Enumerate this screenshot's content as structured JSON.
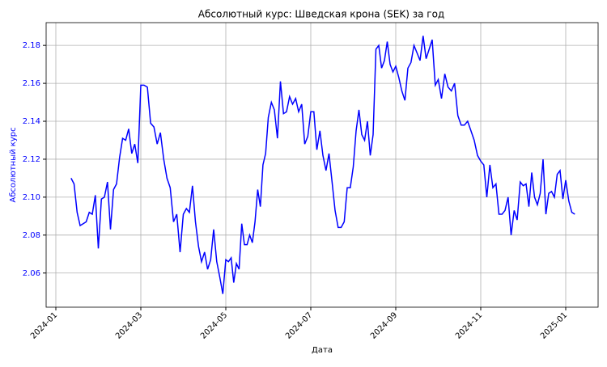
{
  "chart_data": {
    "type": "line",
    "title": "Абсолютный курс: Шведская крона (SEK) за год",
    "xlabel": "Дата",
    "ylabel": "Абсолютный курс",
    "x": [
      "2024-01",
      "2024-01",
      "2024-01",
      "2024-01",
      "2024-01",
      "2024-01",
      "2024-01",
      "2024-01",
      "2024-01",
      "2024-02",
      "2024-02",
      "2024-02",
      "2024-02",
      "2024-02",
      "2024-02",
      "2024-02",
      "2024-02",
      "2024-02",
      "2024-02",
      "2024-02",
      "2024-02",
      "2024-02",
      "2024-02",
      "2024-03",
      "2024-03",
      "2024-03",
      "2024-03",
      "2024-03",
      "2024-03",
      "2024-03",
      "2024-03",
      "2024-03",
      "2024-03",
      "2024-03",
      "2024-03",
      "2024-03",
      "2024-04",
      "2024-04",
      "2024-04",
      "2024-04",
      "2024-04",
      "2024-04",
      "2024-04",
      "2024-04",
      "2024-04",
      "2024-04",
      "2024-04",
      "2024-04",
      "2024-04",
      "2024-04",
      "2024-05",
      "2024-05",
      "2024-05",
      "2024-05",
      "2024-05",
      "2024-05",
      "2024-05",
      "2024-05",
      "2024-05",
      "2024-05",
      "2024-05",
      "2024-05",
      "2024-05",
      "2024-05",
      "2024-05",
      "2024-05",
      "2024-06",
      "2024-06",
      "2024-06",
      "2024-06",
      "2024-06",
      "2024-06",
      "2024-06",
      "2024-06",
      "2024-06",
      "2024-06",
      "2024-06",
      "2024-06",
      "2024-06",
      "2024-06",
      "2024-07",
      "2024-07",
      "2024-07",
      "2024-07",
      "2024-07",
      "2024-07",
      "2024-07",
      "2024-07",
      "2024-07",
      "2024-07",
      "2024-07",
      "2024-07",
      "2024-07",
      "2024-07",
      "2024-08",
      "2024-08",
      "2024-08",
      "2024-08",
      "2024-08",
      "2024-08",
      "2024-08",
      "2024-08",
      "2024-08",
      "2024-08",
      "2024-08",
      "2024-08",
      "2024-08",
      "2024-08",
      "2024-08",
      "2024-09",
      "2024-09",
      "2024-09",
      "2024-09",
      "2024-09",
      "2024-09",
      "2024-09",
      "2024-09",
      "2024-09",
      "2024-09",
      "2024-09",
      "2024-09",
      "2024-09",
      "2024-09",
      "2024-10",
      "2024-10",
      "2024-10",
      "2024-10",
      "2024-10",
      "2024-10",
      "2024-10",
      "2024-10",
      "2024-10",
      "2024-10",
      "2024-10",
      "2024-10",
      "2024-10",
      "2024-11",
      "2024-11",
      "2024-11",
      "2024-11",
      "2024-11",
      "2024-11",
      "2024-11",
      "2024-11",
      "2024-11",
      "2024-11",
      "2024-11",
      "2024-11",
      "2024-11",
      "2024-11",
      "2024-12",
      "2024-12",
      "2024-12",
      "2024-12",
      "2024-12",
      "2024-12",
      "2024-12",
      "2024-12",
      "2024-12",
      "2024-12",
      "2024-12",
      "2024-12",
      "2024-12",
      "2024-12",
      "2024-12",
      "2025-01",
      "2025-01",
      "2025-01",
      "2025-01"
    ],
    "series": [
      {
        "name": "SEK",
        "color": "#0000ff",
        "values": [
          2.11,
          2.107,
          2.092,
          2.085,
          2.086,
          2.087,
          2.092,
          2.091,
          2.101,
          2.073,
          2.099,
          2.1,
          2.108,
          2.083,
          2.104,
          2.107,
          2.121,
          2.131,
          2.13,
          2.136,
          2.123,
          2.128,
          2.118,
          2.159,
          2.159,
          2.158,
          2.139,
          2.137,
          2.128,
          2.134,
          2.12,
          2.11,
          2.105,
          2.087,
          2.091,
          2.071,
          2.091,
          2.094,
          2.092,
          2.106,
          2.087,
          2.074,
          2.066,
          2.071,
          2.062,
          2.067,
          2.083,
          2.066,
          2.058,
          2.049,
          2.067,
          2.066,
          2.068,
          2.055,
          2.065,
          2.062,
          2.086,
          2.075,
          2.075,
          2.08,
          2.076,
          2.087,
          2.104,
          2.095,
          2.117,
          2.123,
          2.142,
          2.15,
          2.146,
          2.131,
          2.161,
          2.144,
          2.145,
          2.153,
          2.149,
          2.152,
          2.145,
          2.149,
          2.128,
          2.132,
          2.145,
          2.145,
          2.125,
          2.135,
          2.122,
          2.114,
          2.123,
          2.108,
          2.093,
          2.084,
          2.084,
          2.087,
          2.105,
          2.105,
          2.116,
          2.135,
          2.146,
          2.133,
          2.13,
          2.14,
          2.122,
          2.133,
          2.178,
          2.18,
          2.168,
          2.172,
          2.182,
          2.17,
          2.166,
          2.169,
          2.163,
          2.156,
          2.151,
          2.168,
          2.171,
          2.18,
          2.176,
          2.172,
          2.185,
          2.173,
          2.178,
          2.183,
          2.159,
          2.162,
          2.152,
          2.165,
          2.158,
          2.156,
          2.16,
          2.143,
          2.138,
          2.138,
          2.14,
          2.135,
          2.13,
          2.122,
          2.119,
          2.117,
          2.1,
          2.117,
          2.105,
          2.107,
          2.091,
          2.091,
          2.093,
          2.1,
          2.08,
          2.093,
          2.088,
          2.108,
          2.106,
          2.107,
          2.095,
          2.113,
          2.1,
          2.096,
          2.102,
          2.12,
          2.091,
          2.102,
          2.103,
          2.1,
          2.112,
          2.114,
          2.099,
          2.109,
          2.098,
          2.092,
          2.091
        ]
      }
    ],
    "ylim": [
      2.042,
      2.192
    ],
    "yticks": [
      {
        "value": 2.06,
        "label": "2.06"
      },
      {
        "value": 2.08,
        "label": "2.08"
      },
      {
        "value": 2.1,
        "label": "2.10"
      },
      {
        "value": 2.12,
        "label": "2.12"
      },
      {
        "value": 2.14,
        "label": "2.14"
      },
      {
        "value": 2.16,
        "label": "2.16"
      },
      {
        "value": 2.18,
        "label": "2.18"
      }
    ],
    "xticks": [
      "2024-01",
      "2024-03",
      "2024-05",
      "2024-07",
      "2024-09",
      "2024-11",
      "2025-01"
    ],
    "grid": true
  }
}
